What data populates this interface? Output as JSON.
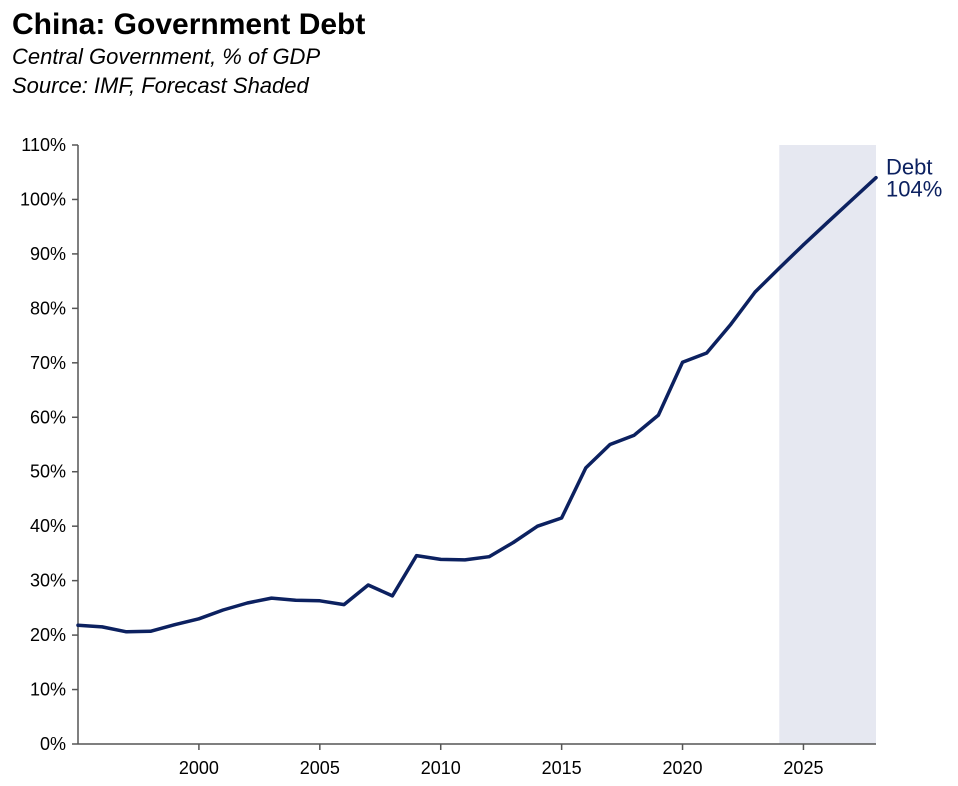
{
  "header": {
    "title": "China: Government Debt",
    "subtitle": "Central Government, % of GDP",
    "source": "Source: IMF, Forecast Shaded"
  },
  "colors": {
    "line": "#0c2160",
    "forecast_shade": "#e6e8f1",
    "axis": "#555555"
  },
  "chart_data": {
    "type": "line",
    "title": "China: Government Debt",
    "subtitle": "Central Government, % of GDP",
    "xlabel": "",
    "ylabel": "",
    "xlim": [
      1995,
      2028
    ],
    "ylim": [
      0,
      110
    ],
    "x_ticks": [
      2000,
      2005,
      2010,
      2015,
      2020,
      2025
    ],
    "x_tick_labels": [
      "2000",
      "2005",
      "2010",
      "2015",
      "2020",
      "2025"
    ],
    "y_ticks": [
      0,
      10,
      20,
      30,
      40,
      50,
      60,
      70,
      80,
      90,
      100,
      110
    ],
    "y_tick_labels": [
      "0%",
      "10%",
      "20%",
      "30%",
      "40%",
      "50%",
      "60%",
      "70%",
      "80%",
      "90%",
      "100%",
      "110%"
    ],
    "grid": false,
    "forecast_range": [
      2024,
      2028
    ],
    "series": [
      {
        "name": "Debt",
        "end_label": "104%",
        "x": [
          1995,
          1996,
          1997,
          1998,
          1999,
          2000,
          2001,
          2002,
          2003,
          2004,
          2005,
          2006,
          2007,
          2008,
          2009,
          2010,
          2011,
          2012,
          2013,
          2014,
          2015,
          2016,
          2017,
          2018,
          2019,
          2020,
          2021,
          2022,
          2023,
          2024,
          2025,
          2026,
          2027,
          2028
        ],
        "values": [
          21.8,
          21.5,
          20.6,
          20.7,
          21.9,
          23.0,
          24.6,
          25.9,
          26.8,
          26.4,
          26.3,
          25.6,
          29.2,
          27.2,
          34.6,
          33.9,
          33.8,
          34.4,
          37.0,
          40.0,
          41.5,
          50.7,
          55.0,
          56.7,
          60.4,
          70.1,
          71.8,
          77.1,
          83.0,
          87.4,
          91.7,
          95.8,
          99.9,
          104.0
        ]
      }
    ]
  }
}
